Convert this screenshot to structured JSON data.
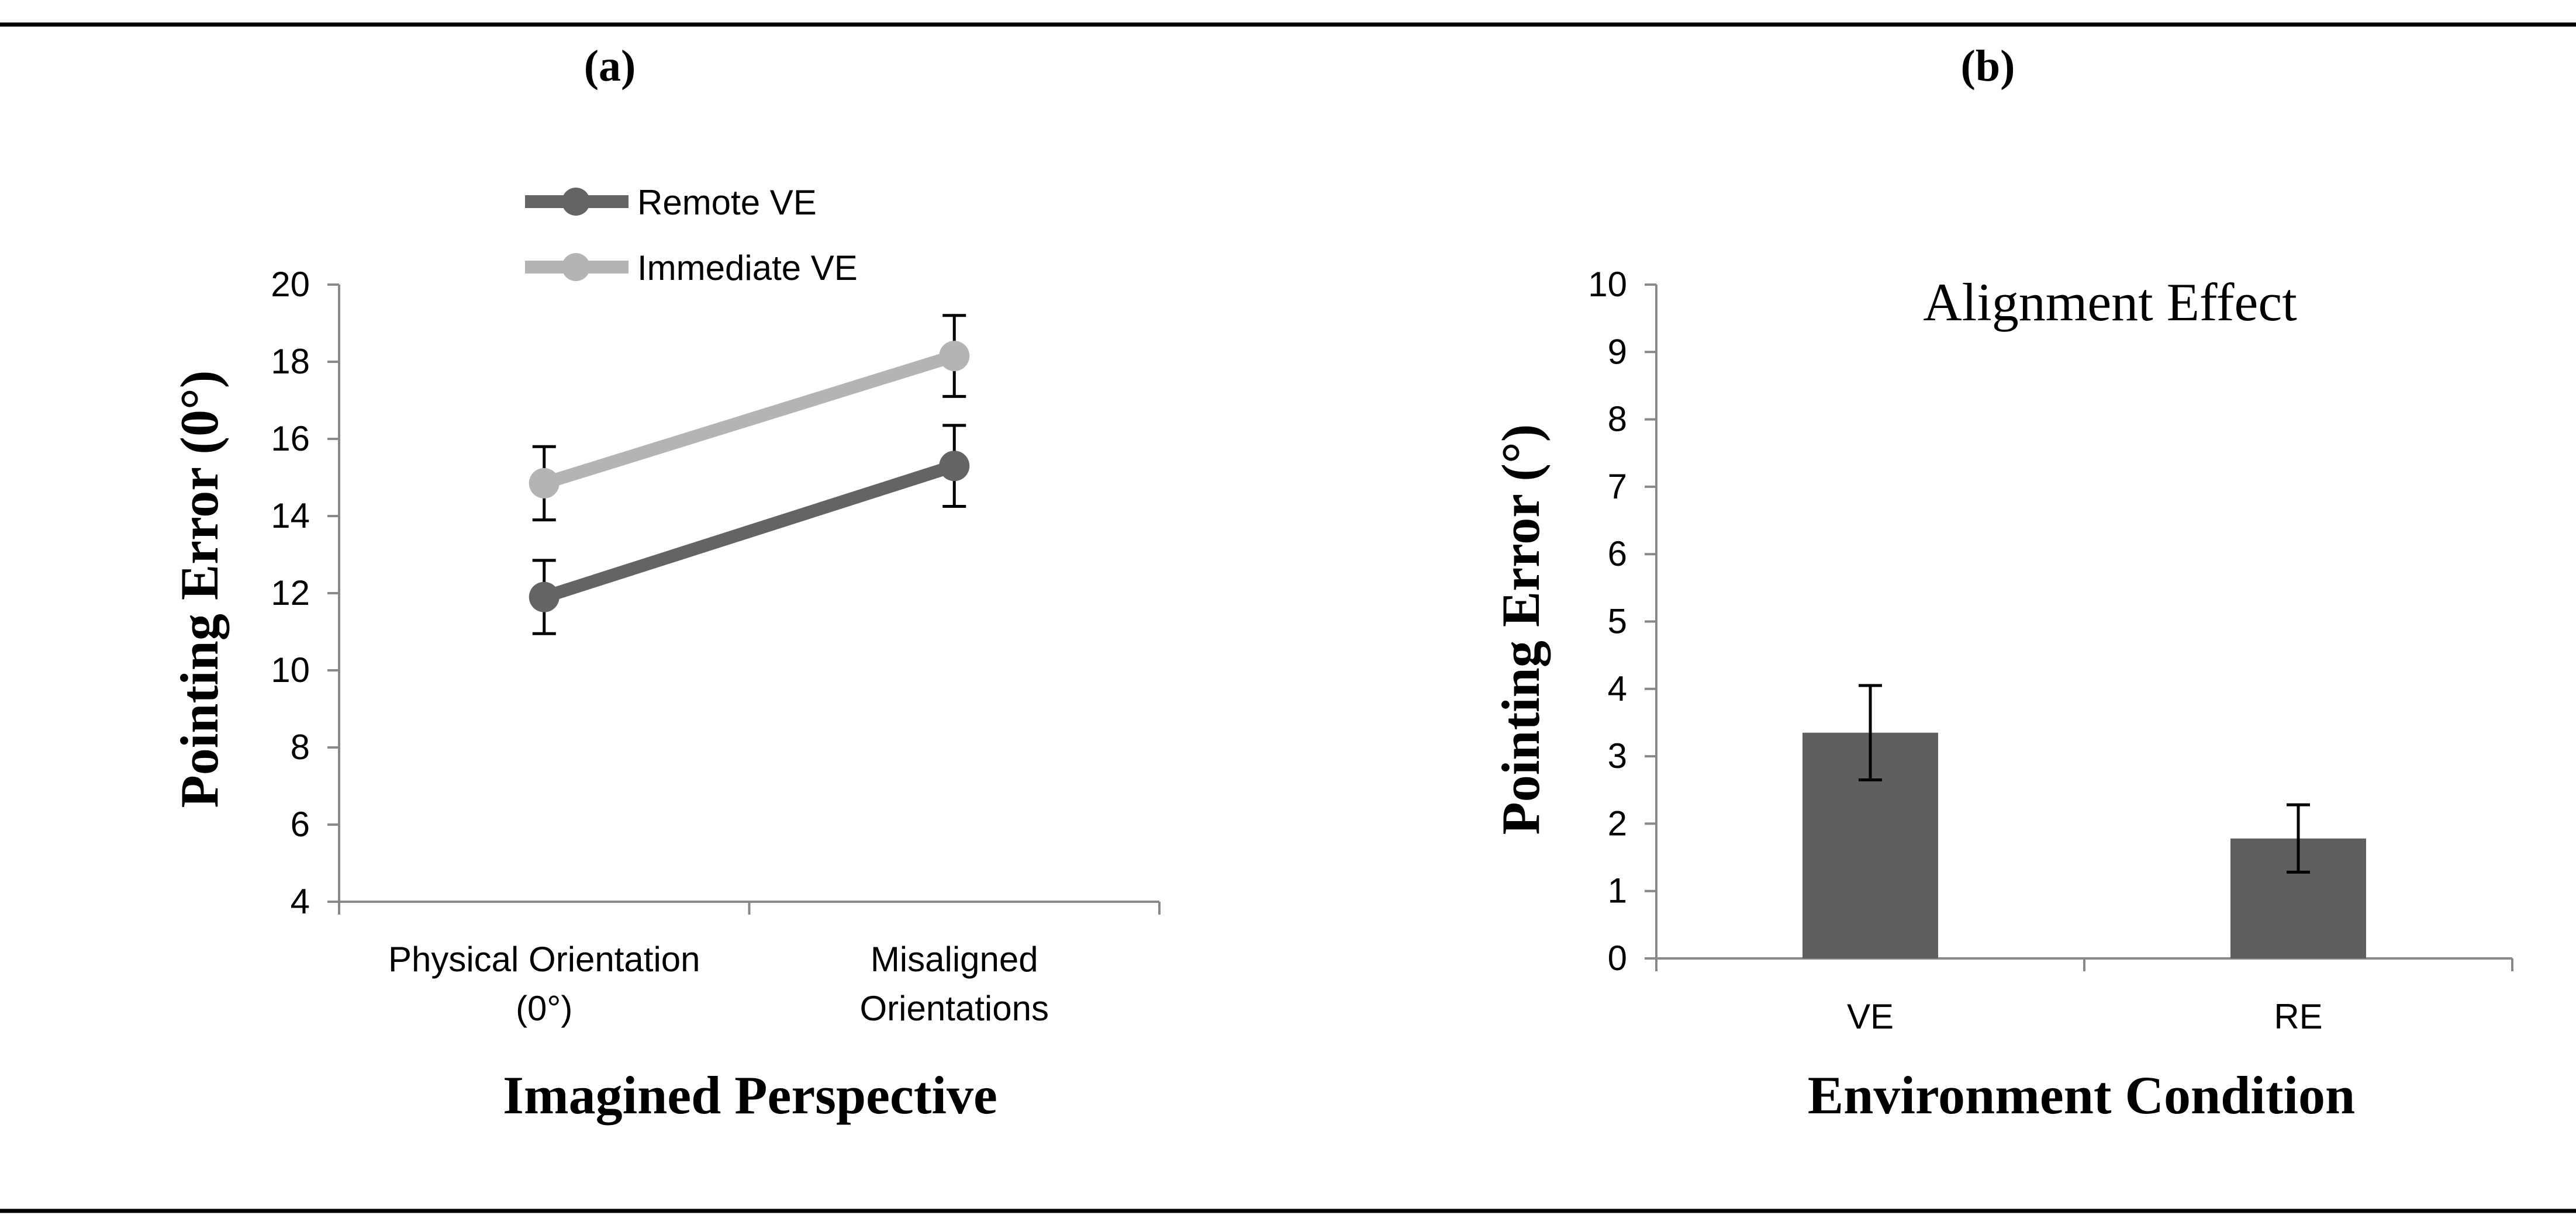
{
  "chart_data": [
    {
      "panel_label": "(a)",
      "type": "line",
      "categories": [
        "Physical Orientation (0°)",
        "Misaligned Orientations"
      ],
      "category_lines": [
        [
          "Physical Orientation",
          "(0°)"
        ],
        [
          "Misaligned",
          "Orientations"
        ]
      ],
      "series": [
        {
          "name": "Remote VE",
          "values": [
            11.9,
            15.3
          ],
          "error": [
            0.95,
            1.05
          ],
          "color": "#646464"
        },
        {
          "name": "Immediate VE",
          "values": [
            14.85,
            18.15
          ],
          "error": [
            0.95,
            1.05
          ],
          "color": "#b4b4b4"
        }
      ],
      "title": "",
      "xlabel": "Imagined Perspective",
      "ylabel": "Pointing Error (0°)",
      "ylim": [
        4,
        20
      ],
      "yticks": [
        4,
        6,
        8,
        10,
        12,
        14,
        16,
        18,
        20
      ],
      "grid": false,
      "legend_position": "top-left"
    },
    {
      "panel_label": "(b)",
      "type": "bar",
      "categories": [
        "VE",
        "RE"
      ],
      "values": [
        3.35,
        1.78
      ],
      "error": [
        0.7,
        0.5
      ],
      "color": "#5f5f5f",
      "title": "Alignment Effect",
      "xlabel": "Environment Condition",
      "ylabel": "Pointing Error (°)",
      "ylim": [
        0,
        10
      ],
      "yticks": [
        0,
        1,
        2,
        3,
        4,
        5,
        6,
        7,
        8,
        9,
        10
      ],
      "grid": false
    }
  ]
}
